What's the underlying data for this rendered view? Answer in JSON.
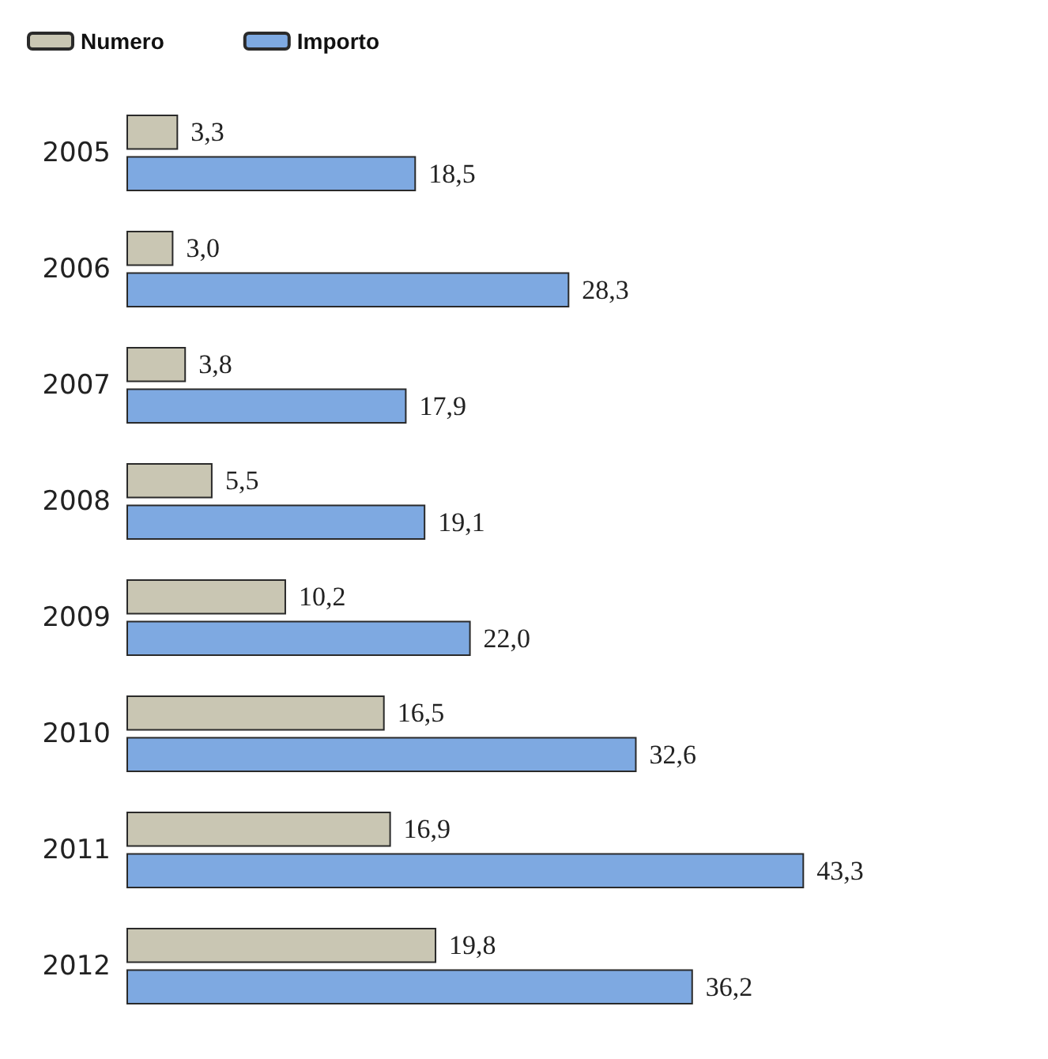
{
  "chart_data": {
    "type": "bar",
    "orientation": "horizontal",
    "categories": [
      "2005",
      "2006",
      "2007",
      "2008",
      "2009",
      "2010",
      "2011",
      "2012"
    ],
    "series": [
      {
        "name": "Numero",
        "color": "#c9c6b3",
        "values": [
          3.3,
          3.0,
          3.8,
          5.5,
          10.2,
          16.5,
          16.9,
          19.8
        ],
        "value_labels": [
          "3,3",
          "3,0",
          "3,8",
          "5,5",
          "10,2",
          "16,5",
          "16,9",
          "19,8"
        ]
      },
      {
        "name": "Importo",
        "color": "#7ea9e1",
        "values": [
          18.5,
          28.3,
          17.9,
          19.1,
          22.0,
          32.6,
          43.3,
          36.2
        ],
        "value_labels": [
          "18,5",
          "28,3",
          "17,9",
          "19,1",
          "22,0",
          "32,6",
          "43,3",
          "36,2"
        ]
      }
    ],
    "legend": "top left"
  }
}
